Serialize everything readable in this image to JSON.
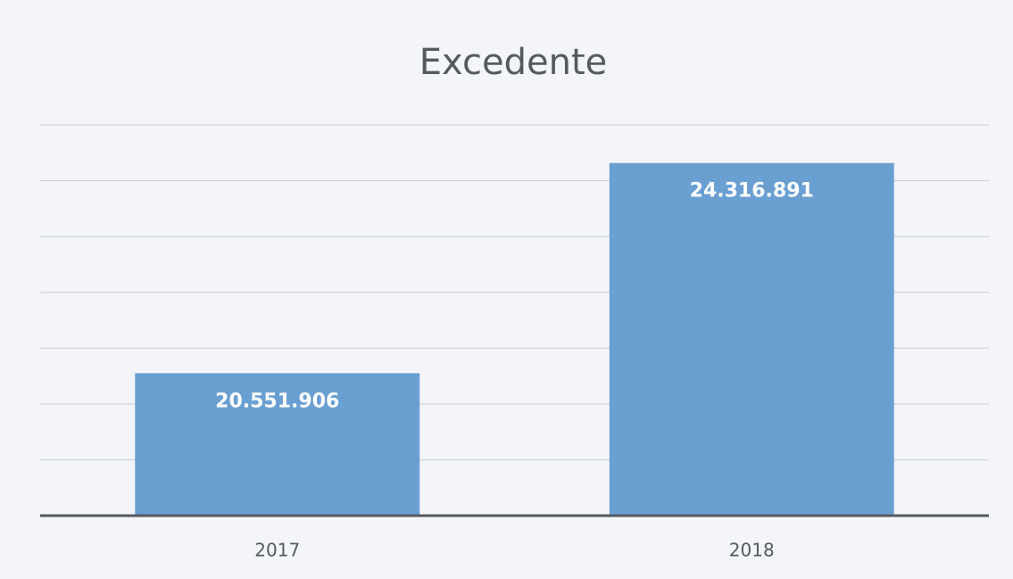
{
  "chart_data": {
    "type": "bar",
    "title": "Excedente",
    "categories": [
      "2017",
      "2018"
    ],
    "values": [
      20551906,
      24316891
    ],
    "value_labels": [
      "20.551.906",
      "24.316.891"
    ],
    "color": "#6a9fd2",
    "ylim": [
      18000000,
      25000000
    ],
    "yticks": [
      18000000,
      19000000,
      20000000,
      21000000,
      22000000,
      23000000,
      24000000,
      25000000
    ],
    "grid": true
  }
}
